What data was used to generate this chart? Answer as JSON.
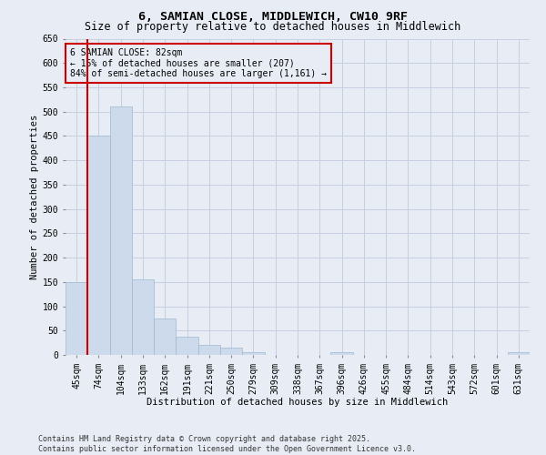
{
  "title_line1": "6, SAMIAN CLOSE, MIDDLEWICH, CW10 9RF",
  "title_line2": "Size of property relative to detached houses in Middlewich",
  "xlabel": "Distribution of detached houses by size in Middlewich",
  "ylabel": "Number of detached properties",
  "categories": [
    "45sqm",
    "74sqm",
    "104sqm",
    "133sqm",
    "162sqm",
    "191sqm",
    "221sqm",
    "250sqm",
    "279sqm",
    "309sqm",
    "338sqm",
    "367sqm",
    "396sqm",
    "426sqm",
    "455sqm",
    "484sqm",
    "514sqm",
    "543sqm",
    "572sqm",
    "601sqm",
    "631sqm"
  ],
  "values": [
    150,
    450,
    510,
    155,
    75,
    38,
    20,
    15,
    5,
    0,
    0,
    0,
    5,
    0,
    0,
    0,
    0,
    0,
    0,
    0,
    5
  ],
  "bar_color": "#ccdaeb",
  "bar_edge_color": "#a0b8d0",
  "grid_color": "#c5d0e0",
  "bg_color": "#e8edf5",
  "vline_color": "#cc0000",
  "annotation_text": "6 SAMIAN CLOSE: 82sqm\n← 15% of detached houses are smaller (207)\n84% of semi-detached houses are larger (1,161) →",
  "annotation_box_color": "#cc0000",
  "ylim": [
    0,
    650
  ],
  "yticks": [
    0,
    50,
    100,
    150,
    200,
    250,
    300,
    350,
    400,
    450,
    500,
    550,
    600,
    650
  ],
  "footer": "Contains HM Land Registry data © Crown copyright and database right 2025.\nContains public sector information licensed under the Open Government Licence v3.0.",
  "title_fontsize": 9.5,
  "subtitle_fontsize": 8.5,
  "axis_label_fontsize": 7.5,
  "tick_fontsize": 7,
  "footer_fontsize": 6,
  "annotation_fontsize": 7
}
